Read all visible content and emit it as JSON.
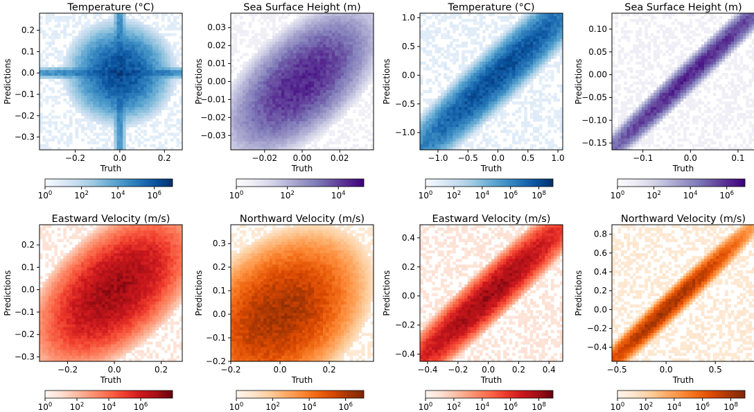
{
  "chart_data": [
    {
      "type": "heatmap",
      "title": "Temperature (°C)",
      "xlabel": "Truth",
      "ylabel": "Predictions",
      "cmap": "Blues",
      "xlim": [
        -0.36,
        0.28
      ],
      "ylim": [
        -0.36,
        0.28
      ],
      "xticks": [
        -0.2,
        0.0,
        0.2
      ],
      "xtick_labels": [
        "−0.2",
        "0.0",
        "0.2"
      ],
      "yticks": [
        -0.3,
        -0.2,
        -0.1,
        0.0,
        0.1,
        0.2
      ],
      "ytick_labels": [
        "−0.3",
        "−0.2",
        "−0.1",
        "0.0",
        "0.1",
        "0.2"
      ],
      "density": {
        "shape": "cross",
        "center": [
          0.0,
          0.0
        ],
        "spread": 0.1,
        "corr": 0.0
      },
      "colorbar": {
        "scale": "log",
        "range": [
          1,
          10000000
        ],
        "ticks": [
          {
            "exp": 0,
            "label": "10"
          },
          {
            "exp": 2,
            "label": "10"
          },
          {
            "exp": 4,
            "label": "10"
          },
          {
            "exp": 6,
            "label": "10"
          }
        ]
      }
    },
    {
      "type": "heatmap",
      "title": "Sea Surface Height (m)",
      "xlabel": "Truth",
      "ylabel": "Predictions",
      "cmap": "Purples",
      "xlim": [
        -0.038,
        0.038
      ],
      "ylim": [
        -0.038,
        0.038
      ],
      "xticks": [
        -0.02,
        0.0,
        0.02
      ],
      "xtick_labels": [
        "−0.02",
        "0.00",
        "0.02"
      ],
      "yticks": [
        -0.03,
        -0.02,
        -0.01,
        0.0,
        0.01,
        0.02,
        0.03
      ],
      "ytick_labels": [
        "−0.03",
        "−0.02",
        "−0.01",
        "0.00",
        "0.01",
        "0.02",
        "0.03"
      ],
      "density": {
        "shape": "blob",
        "center": [
          0.0,
          0.0
        ],
        "spread": 0.012,
        "corr": 0.6
      },
      "colorbar": {
        "scale": "log",
        "range": [
          1,
          100000
        ],
        "ticks": [
          {
            "exp": 0,
            "label": "10"
          },
          {
            "exp": 2,
            "label": "10"
          },
          {
            "exp": 4,
            "label": "10"
          }
        ]
      }
    },
    {
      "type": "heatmap",
      "title": "Temperature (°C)",
      "xlabel": "Truth",
      "ylabel": "Predictions",
      "cmap": "Blues",
      "xlim": [
        -1.3,
        1.08
      ],
      "ylim": [
        -1.3,
        1.08
      ],
      "xticks": [
        -1.0,
        -0.5,
        0.0,
        0.5,
        1.0
      ],
      "xtick_labels": [
        "−1.0",
        "−0.5",
        "0.0",
        "0.5",
        "1.0"
      ],
      "yticks": [
        -1.0,
        -0.5,
        0.0,
        0.5,
        1.0
      ],
      "ytick_labels": [
        "−1.0",
        "−0.5",
        "0.0",
        "0.5",
        "1.0"
      ],
      "density": {
        "shape": "diagonal",
        "center": [
          0.0,
          0.0
        ],
        "spread": 0.45,
        "corr": 0.96
      },
      "colorbar": {
        "scale": "log",
        "range": [
          1,
          1000000000
        ],
        "ticks": [
          {
            "exp": 0,
            "label": "10"
          },
          {
            "exp": 2,
            "label": "10"
          },
          {
            "exp": 4,
            "label": "10"
          },
          {
            "exp": 6,
            "label": "10"
          },
          {
            "exp": 8,
            "label": "10"
          }
        ]
      }
    },
    {
      "type": "heatmap",
      "title": "Sea Surface Height (m)",
      "xlabel": "Truth",
      "ylabel": "Predictions",
      "cmap": "Purples",
      "xlim": [
        -0.165,
        0.135
      ],
      "ylim": [
        -0.165,
        0.135
      ],
      "xticks": [
        -0.1,
        0.0,
        0.1
      ],
      "xtick_labels": [
        "−0.1",
        "0.0",
        "0.1"
      ],
      "yticks": [
        -0.15,
        -0.1,
        -0.05,
        0.0,
        0.05,
        0.1
      ],
      "ytick_labels": [
        "−0.15",
        "−0.10",
        "−0.05",
        "0.00",
        "0.05",
        "0.10"
      ],
      "density": {
        "shape": "diagonal",
        "center": [
          0.0,
          0.0
        ],
        "spread": 0.06,
        "corr": 0.99
      },
      "colorbar": {
        "scale": "log",
        "range": [
          1,
          10000000
        ],
        "ticks": [
          {
            "exp": 0,
            "label": "10"
          },
          {
            "exp": 2,
            "label": "10"
          },
          {
            "exp": 4,
            "label": "10"
          },
          {
            "exp": 6,
            "label": "10"
          }
        ]
      }
    },
    {
      "type": "heatmap",
      "title": "Eastward Velocity (m/s)",
      "xlabel": "Truth",
      "ylabel": "Predictions",
      "cmap": "Reds",
      "xlim": [
        -0.32,
        0.29
      ],
      "ylim": [
        -0.32,
        0.29
      ],
      "xticks": [
        -0.2,
        0.0,
        0.2
      ],
      "xtick_labels": [
        "−0.2",
        "0.0",
        "0.2"
      ],
      "yticks": [
        -0.3,
        -0.2,
        -0.1,
        0.0,
        0.1,
        0.2
      ],
      "ytick_labels": [
        "−0.3",
        "−0.2",
        "−0.1",
        "0.0",
        "0.1",
        "0.2"
      ],
      "density": {
        "shape": "blob",
        "center": [
          0.0,
          0.0
        ],
        "spread": 0.1,
        "corr": 0.55
      },
      "colorbar": {
        "scale": "log",
        "range": [
          1,
          100000000
        ],
        "ticks": [
          {
            "exp": 0,
            "label": "10"
          },
          {
            "exp": 2,
            "label": "10"
          },
          {
            "exp": 4,
            "label": "10"
          },
          {
            "exp": 6,
            "label": "10"
          }
        ]
      }
    },
    {
      "type": "heatmap",
      "title": "Northward Velocity (m/s)",
      "xlabel": "Truth",
      "ylabel": "Predictions",
      "cmap": "Oranges",
      "xlim": [
        -0.2,
        0.38
      ],
      "ylim": [
        -0.2,
        0.38
      ],
      "xticks": [
        -0.2,
        0.0,
        0.2
      ],
      "xtick_labels": [
        "−0.2",
        "0.0",
        "0.2"
      ],
      "yticks": [
        -0.2,
        -0.1,
        0.0,
        0.1,
        0.2,
        0.3
      ],
      "ytick_labels": [
        "−0.2",
        "−0.1",
        "0.0",
        "0.1",
        "0.2",
        "0.3"
      ],
      "density": {
        "shape": "blob",
        "center": [
          0.0,
          0.0
        ],
        "spread": 0.1,
        "corr": 0.35
      },
      "colorbar": {
        "scale": "log",
        "range": [
          1,
          10000000
        ],
        "ticks": [
          {
            "exp": 0,
            "label": "10"
          },
          {
            "exp": 2,
            "label": "10"
          },
          {
            "exp": 4,
            "label": "10"
          },
          {
            "exp": 6,
            "label": "10"
          }
        ]
      }
    },
    {
      "type": "heatmap",
      "title": "Eastward Velocity (m/s)",
      "xlabel": "Truth",
      "ylabel": "Predictions",
      "cmap": "Reds",
      "xlim": [
        -0.45,
        0.49
      ],
      "ylim": [
        -0.45,
        0.49
      ],
      "xticks": [
        -0.4,
        -0.2,
        0.0,
        0.2,
        0.4
      ],
      "xtick_labels": [
        "−0.4",
        "−0.2",
        "0.0",
        "0.2",
        "0.4"
      ],
      "yticks": [
        -0.4,
        -0.2,
        0.0,
        0.2,
        0.4
      ],
      "ytick_labels": [
        "−0.4",
        "−0.2",
        "0.0",
        "0.2",
        "0.4"
      ],
      "density": {
        "shape": "diagonal",
        "center": [
          0.0,
          0.0
        ],
        "spread": 0.16,
        "corr": 0.96
      },
      "colorbar": {
        "scale": "log",
        "range": [
          1,
          1000000000
        ],
        "ticks": [
          {
            "exp": 0,
            "label": "10"
          },
          {
            "exp": 2,
            "label": "10"
          },
          {
            "exp": 4,
            "label": "10"
          },
          {
            "exp": 6,
            "label": "10"
          },
          {
            "exp": 8,
            "label": "10"
          }
        ]
      }
    },
    {
      "type": "heatmap",
      "title": "Northward Velocity (m/s)",
      "xlabel": "Truth",
      "ylabel": "Predictions",
      "cmap": "Oranges",
      "xlim": [
        -0.55,
        0.9
      ],
      "ylim": [
        -0.55,
        0.9
      ],
      "xticks": [
        -0.5,
        0.0,
        0.5
      ],
      "xtick_labels": [
        "−0.5",
        "0.0",
        "0.5"
      ],
      "yticks": [
        -0.4,
        -0.2,
        0.0,
        0.2,
        0.4,
        0.6,
        0.8
      ],
      "ytick_labels": [
        "−0.4",
        "−0.2",
        "0.0",
        "0.2",
        "0.4",
        "0.6",
        "0.8"
      ],
      "density": {
        "shape": "diagonal",
        "center": [
          0.0,
          0.0
        ],
        "spread": 0.22,
        "corr": 0.985
      },
      "colorbar": {
        "scale": "log",
        "range": [
          1,
          1000000000
        ],
        "ticks": [
          {
            "exp": 0,
            "label": "10"
          },
          {
            "exp": 2,
            "label": "10"
          },
          {
            "exp": 4,
            "label": "10"
          },
          {
            "exp": 6,
            "label": "10"
          },
          {
            "exp": 8,
            "label": "10"
          }
        ]
      }
    }
  ],
  "colormaps": {
    "Blues": [
      "#f7fbff",
      "#deebf7",
      "#c6dbef",
      "#9ecae1",
      "#6baed6",
      "#4292c6",
      "#2171b5",
      "#08519c",
      "#08306b"
    ],
    "Purples": [
      "#fcfbfd",
      "#efedf5",
      "#dadaeb",
      "#bcbddc",
      "#9e9ac8",
      "#807dba",
      "#6a51a3",
      "#54278f",
      "#3f007d"
    ],
    "Reds": [
      "#fff5f0",
      "#fee0d2",
      "#fcbba1",
      "#fc9272",
      "#fb6a4a",
      "#ef3b2c",
      "#cb181d",
      "#a50f15",
      "#67000d"
    ],
    "Oranges": [
      "#fff5eb",
      "#fee6ce",
      "#fdd0a2",
      "#fdae6b",
      "#fd8d3c",
      "#f16913",
      "#d94801",
      "#a63603",
      "#7f2704"
    ]
  }
}
